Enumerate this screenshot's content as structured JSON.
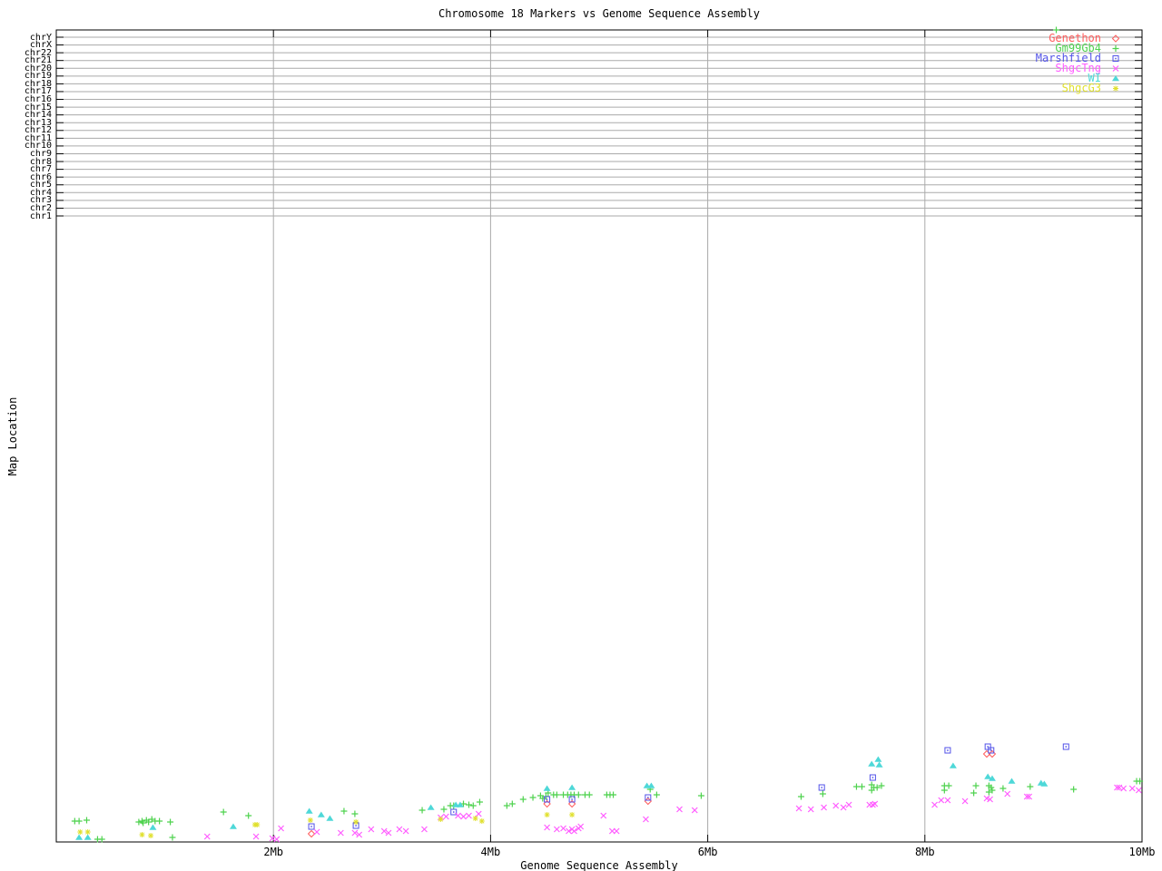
{
  "title": "Chromosome 18 Markers vs Genome Sequence Assembly",
  "x_axis": {
    "label": "Genome Sequence Assembly",
    "ticks": [
      {
        "mb": 2,
        "label": "2Mb"
      },
      {
        "mb": 4,
        "label": "4Mb"
      },
      {
        "mb": 6,
        "label": "6Mb"
      },
      {
        "mb": 8,
        "label": "8Mb"
      },
      {
        "mb": 10,
        "label": "10Mb"
      }
    ],
    "range_mb": [
      0,
      10
    ]
  },
  "y_axis": {
    "label": "Map Location",
    "chromosomes": [
      "chrY",
      "chrX",
      "chr22",
      "chr21",
      "chr20",
      "chr19",
      "chr18",
      "chr17",
      "chr16",
      "chr15",
      "chr14",
      "chr13",
      "chr12",
      "chr11",
      "chr10",
      "chr9",
      "chr8",
      "chr7",
      "chr6",
      "chr5",
      "chr4",
      "chr3",
      "chr2",
      "chr1"
    ]
  },
  "legend": [
    {
      "name": "Genethon",
      "marker": "open-diamond",
      "color": "#ff5c5c"
    },
    {
      "name": "Gm99Gb4",
      "marker": "plus",
      "color": "#4ed24e"
    },
    {
      "name": "Marshfield",
      "marker": "open-square-dot",
      "color": "#5252e8"
    },
    {
      "name": "ShgcTng",
      "marker": "cross",
      "color": "#ff5cff"
    },
    {
      "name": "WI",
      "marker": "triangle",
      "color": "#4ed8d8"
    },
    {
      "name": "ShgcG3",
      "marker": "star",
      "color": "#e0e02e"
    }
  ],
  "chart_data": {
    "type": "scatter",
    "title": "Chromosome 18 Markers vs Genome Sequence Assembly",
    "xlabel": "Genome Sequence Assembly",
    "ylabel": "Map Location",
    "xlim_mb": [
      0,
      10
    ],
    "x_units": "Mb",
    "y_units": "screen-px (no numeric y scale shown; chromosome bands chrY..chr1 at top)",
    "grid": true,
    "legend_position": "top-right",
    "series": [
      {
        "name": "Genethon",
        "marker": "open-diamond",
        "color": "#ff5c5c",
        "points": [
          [
            2.35,
            919
          ],
          [
            4.52,
            886
          ],
          [
            4.75,
            886
          ],
          [
            5.45,
            883
          ],
          [
            8.57,
            831
          ],
          [
            8.62,
            831
          ]
        ]
      },
      {
        "name": "Gm99Gb4",
        "marker": "plus",
        "color": "#4ed24e",
        "points": [
          [
            0.17,
            905
          ],
          [
            0.21,
            905
          ],
          [
            0.28,
            904
          ],
          [
            0.38,
            925
          ],
          [
            0.42,
            925
          ],
          [
            0.76,
            906
          ],
          [
            0.79,
            905
          ],
          [
            0.8,
            907
          ],
          [
            0.83,
            904
          ],
          [
            0.85,
            906
          ],
          [
            0.88,
            903
          ],
          [
            0.91,
            905
          ],
          [
            0.95,
            905
          ],
          [
            1.05,
            906
          ],
          [
            1.07,
            923
          ],
          [
            1.54,
            895
          ],
          [
            1.77,
            899
          ],
          [
            2.65,
            894
          ],
          [
            2.75,
            897
          ],
          [
            3.37,
            893
          ],
          [
            3.57,
            892
          ],
          [
            3.63,
            888
          ],
          [
            3.66,
            888
          ],
          [
            3.75,
            886
          ],
          [
            3.8,
            887
          ],
          [
            3.84,
            888
          ],
          [
            3.9,
            884
          ],
          [
            4.15,
            888
          ],
          [
            4.2,
            886
          ],
          [
            4.3,
            881
          ],
          [
            4.39,
            879
          ],
          [
            4.46,
            877
          ],
          [
            4.48,
            880
          ],
          [
            4.51,
            878
          ],
          [
            4.53,
            874
          ],
          [
            4.58,
            876
          ],
          [
            4.61,
            876
          ],
          [
            4.67,
            876
          ],
          [
            4.71,
            876
          ],
          [
            4.74,
            876
          ],
          [
            4.77,
            876
          ],
          [
            4.81,
            876
          ],
          [
            4.87,
            876
          ],
          [
            4.91,
            876
          ],
          [
            5.07,
            876
          ],
          [
            5.1,
            876
          ],
          [
            5.13,
            876
          ],
          [
            5.47,
            870
          ],
          [
            5.53,
            876
          ],
          [
            5.94,
            877
          ],
          [
            6.86,
            878
          ],
          [
            7.06,
            875
          ],
          [
            7.37,
            867
          ],
          [
            7.42,
            867
          ],
          [
            7.51,
            865
          ],
          [
            7.51,
            871
          ],
          [
            7.53,
            868
          ],
          [
            7.56,
            868
          ],
          [
            7.6,
            866
          ],
          [
            8.18,
            866
          ],
          [
            8.18,
            871
          ],
          [
            8.22,
            866
          ],
          [
            8.45,
            874
          ],
          [
            8.47,
            866
          ],
          [
            8.59,
            866
          ],
          [
            8.59,
            873
          ],
          [
            8.61,
            868
          ],
          [
            8.62,
            871
          ],
          [
            8.72,
            869
          ],
          [
            8.97,
            867
          ],
          [
            9.37,
            870
          ],
          [
            9.95,
            861
          ],
          [
            9.98,
            861
          ],
          [
            9.21,
            33
          ]
        ]
      },
      {
        "name": "Marshfield",
        "marker": "open-square-dot",
        "color": "#5252e8",
        "points": [
          [
            2.35,
            911
          ],
          [
            2.76,
            910
          ],
          [
            3.66,
            895
          ],
          [
            4.52,
            881
          ],
          [
            4.75,
            881
          ],
          [
            5.45,
            879
          ],
          [
            7.05,
            868
          ],
          [
            7.52,
            857
          ],
          [
            8.21,
            827
          ],
          [
            8.58,
            823
          ],
          [
            8.61,
            827
          ],
          [
            9.3,
            823
          ]
        ]
      },
      {
        "name": "ShgcTng",
        "marker": "cross",
        "color": "#ff5cff",
        "points": [
          [
            1.39,
            922
          ],
          [
            1.84,
            922
          ],
          [
            1.99,
            924
          ],
          [
            2.03,
            925
          ],
          [
            2.07,
            913
          ],
          [
            2.4,
            917
          ],
          [
            2.62,
            918
          ],
          [
            2.75,
            918
          ],
          [
            2.79,
            920
          ],
          [
            2.9,
            914
          ],
          [
            3.02,
            916
          ],
          [
            3.06,
            918
          ],
          [
            3.16,
            914
          ],
          [
            3.22,
            916
          ],
          [
            3.39,
            914
          ],
          [
            3.54,
            901
          ],
          [
            3.59,
            900
          ],
          [
            3.7,
            899
          ],
          [
            3.75,
            900
          ],
          [
            3.8,
            899
          ],
          [
            3.89,
            897
          ],
          [
            4.52,
            912
          ],
          [
            4.61,
            914
          ],
          [
            4.67,
            913
          ],
          [
            4.72,
            916
          ],
          [
            4.75,
            914
          ],
          [
            4.77,
            916
          ],
          [
            4.81,
            913
          ],
          [
            4.83,
            911
          ],
          [
            5.04,
            899
          ],
          [
            5.12,
            916
          ],
          [
            5.16,
            916
          ],
          [
            5.43,
            903
          ],
          [
            5.74,
            892
          ],
          [
            5.88,
            893
          ],
          [
            6.84,
            891
          ],
          [
            6.95,
            892
          ],
          [
            7.07,
            890
          ],
          [
            7.18,
            888
          ],
          [
            7.25,
            890
          ],
          [
            7.3,
            887
          ],
          [
            7.49,
            887
          ],
          [
            7.52,
            887
          ],
          [
            7.54,
            886
          ],
          [
            8.09,
            887
          ],
          [
            8.15,
            882
          ],
          [
            8.21,
            882
          ],
          [
            8.37,
            883
          ],
          [
            8.57,
            880
          ],
          [
            8.6,
            881
          ],
          [
            8.76,
            875
          ],
          [
            8.94,
            878
          ],
          [
            8.96,
            878
          ],
          [
            9.77,
            868
          ],
          [
            9.79,
            868
          ],
          [
            9.83,
            869
          ],
          [
            9.91,
            869
          ],
          [
            9.97,
            871
          ]
        ]
      },
      {
        "name": "WI",
        "marker": "triangle",
        "color": "#4ed8d8",
        "points": [
          [
            0.21,
            923
          ],
          [
            0.29,
            923
          ],
          [
            0.89,
            912
          ],
          [
            1.63,
            911
          ],
          [
            2.33,
            894
          ],
          [
            2.44,
            898
          ],
          [
            2.52,
            902
          ],
          [
            3.45,
            890
          ],
          [
            3.68,
            887
          ],
          [
            3.72,
            887
          ],
          [
            4.52,
            869
          ],
          [
            4.75,
            868
          ],
          [
            5.44,
            866
          ],
          [
            5.48,
            866
          ],
          [
            7.51,
            842
          ],
          [
            7.57,
            837
          ],
          [
            7.58,
            843
          ],
          [
            8.26,
            844
          ],
          [
            8.58,
            856
          ],
          [
            8.62,
            858
          ],
          [
            8.8,
            861
          ],
          [
            9.07,
            863
          ],
          [
            9.1,
            864
          ]
        ]
      },
      {
        "name": "ShgcG3",
        "marker": "star",
        "color": "#e0e02e",
        "points": [
          [
            0.22,
            917
          ],
          [
            0.29,
            917
          ],
          [
            0.79,
            920
          ],
          [
            0.87,
            921
          ],
          [
            1.83,
            909
          ],
          [
            1.85,
            909
          ],
          [
            2.34,
            904
          ],
          [
            2.76,
            906
          ],
          [
            3.54,
            903
          ],
          [
            3.86,
            902
          ],
          [
            3.92,
            905
          ],
          [
            4.52,
            898
          ],
          [
            4.75,
            898
          ]
        ]
      }
    ]
  },
  "colors": {
    "grid": "#aaaaaa",
    "axis": "#000000",
    "background": "#ffffff"
  }
}
